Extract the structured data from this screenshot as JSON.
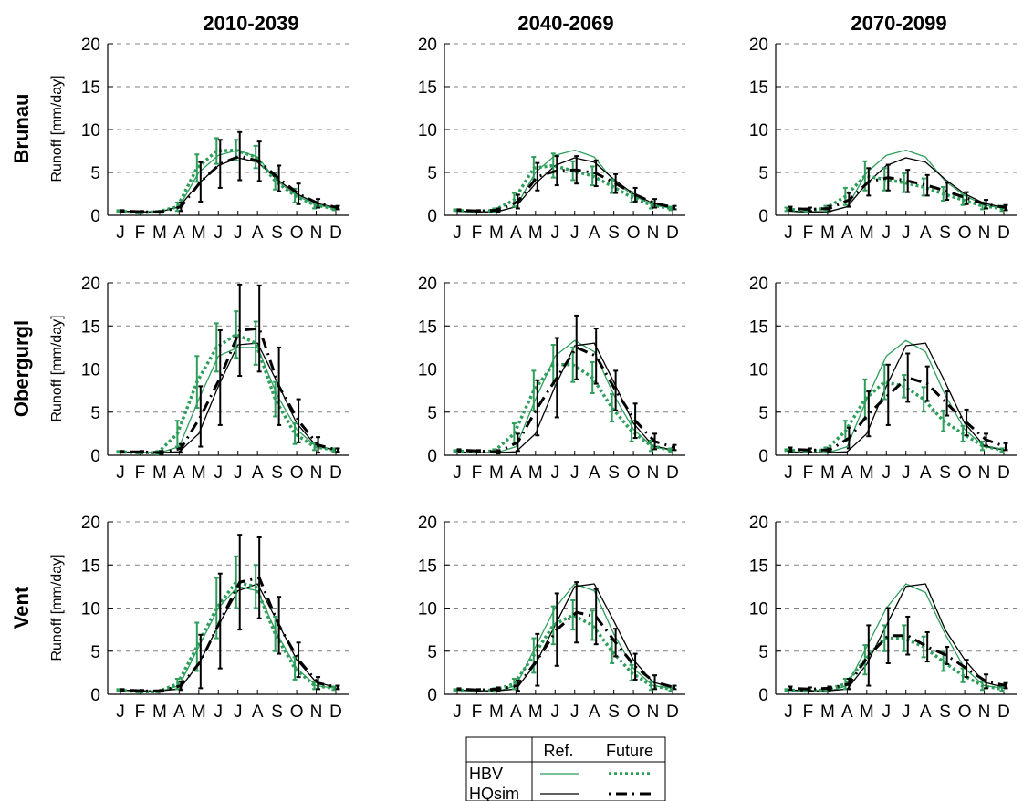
{
  "colors": {
    "hbv": "#2e9e5b",
    "hqsim": "#000000",
    "grid": "#808080"
  },
  "legend": {
    "ref_header": "Ref.",
    "future_header": "Future",
    "hbv_label": "HBV",
    "hqsim_label": "HQsim"
  },
  "chart_data": [
    {
      "type": "line",
      "row": "Brunau",
      "period": "2010-2039",
      "ylabel": "Runoff [mm/day]",
      "categories": [
        "J",
        "F",
        "M",
        "A",
        "M",
        "J",
        "J",
        "A",
        "S",
        "O",
        "N",
        "D"
      ],
      "ylim": [
        0,
        20
      ],
      "yticks": [
        0,
        5,
        10,
        15,
        20
      ],
      "grid": "dashed-horizontal",
      "series": [
        {
          "name": "HBV",
          "role": "ref",
          "values": [
            0.5,
            0.3,
            0.4,
            1.0,
            5.0,
            7.0,
            7.6,
            6.8,
            4.0,
            2.3,
            1.2,
            0.8
          ]
        },
        {
          "name": "HQsim",
          "role": "ref",
          "values": [
            0.5,
            0.4,
            0.4,
            1.0,
            3.7,
            5.8,
            6.7,
            6.2,
            4.2,
            2.5,
            1.4,
            0.9
          ]
        },
        {
          "name": "HBV",
          "role": "future",
          "values": [
            0.5,
            0.3,
            0.4,
            1.0,
            5.5,
            7.5,
            7.6,
            6.8,
            4.0,
            2.3,
            1.2,
            0.8
          ],
          "err": [
            0.1,
            0.1,
            0.1,
            0.5,
            1.6,
            1.5,
            1.2,
            1.3,
            1.0,
            0.8,
            0.4,
            0.2
          ]
        },
        {
          "name": "HQsim",
          "role": "future",
          "values": [
            0.5,
            0.4,
            0.4,
            1.0,
            3.9,
            6.0,
            6.9,
            6.3,
            4.3,
            2.5,
            1.4,
            0.9
          ],
          "err": [
            0.1,
            0.1,
            0.1,
            0.5,
            2.3,
            2.8,
            2.8,
            2.3,
            1.5,
            1.2,
            0.5,
            0.2
          ]
        }
      ]
    },
    {
      "type": "line",
      "row": "Brunau",
      "period": "2040-2069",
      "categories": [
        "J",
        "F",
        "M",
        "A",
        "M",
        "J",
        "J",
        "A",
        "S",
        "O",
        "N",
        "D"
      ],
      "ylim": [
        0,
        20
      ],
      "yticks": [
        0,
        5,
        10,
        15,
        20
      ],
      "grid": "dashed-horizontal",
      "series": [
        {
          "name": "HBV",
          "role": "ref",
          "values": [
            0.5,
            0.3,
            0.4,
            1.0,
            5.0,
            7.0,
            7.6,
            6.8,
            4.0,
            2.3,
            1.2,
            0.8
          ]
        },
        {
          "name": "HQsim",
          "role": "ref",
          "values": [
            0.5,
            0.4,
            0.4,
            1.0,
            3.7,
            5.8,
            6.7,
            6.2,
            4.2,
            2.5,
            1.4,
            0.9
          ]
        },
        {
          "name": "HBV",
          "role": "future",
          "values": [
            0.6,
            0.4,
            0.6,
            1.8,
            5.5,
            5.8,
            5.2,
            4.6,
            3.4,
            2.1,
            1.2,
            0.8
          ],
          "err": [
            0.1,
            0.1,
            0.2,
            0.8,
            1.3,
            1.4,
            1.1,
            1.1,
            0.8,
            0.6,
            0.4,
            0.2
          ]
        },
        {
          "name": "HQsim",
          "role": "future",
          "values": [
            0.6,
            0.5,
            0.6,
            1.6,
            4.5,
            5.2,
            5.3,
            4.9,
            3.7,
            2.4,
            1.4,
            0.9
          ],
          "err": [
            0.1,
            0.1,
            0.2,
            0.8,
            1.6,
            1.7,
            1.6,
            1.5,
            1.1,
            0.8,
            0.5,
            0.2
          ]
        }
      ]
    },
    {
      "type": "line",
      "row": "Brunau",
      "period": "2070-2099",
      "categories": [
        "J",
        "F",
        "M",
        "A",
        "M",
        "J",
        "J",
        "A",
        "S",
        "O",
        "N",
        "D"
      ],
      "ylim": [
        0,
        20
      ],
      "yticks": [
        0,
        5,
        10,
        15,
        20
      ],
      "grid": "dashed-horizontal",
      "series": [
        {
          "name": "HBV",
          "role": "ref",
          "values": [
            0.5,
            0.3,
            0.4,
            1.0,
            5.0,
            7.0,
            7.6,
            6.8,
            4.0,
            2.3,
            1.2,
            0.8
          ]
        },
        {
          "name": "HQsim",
          "role": "ref",
          "values": [
            0.5,
            0.4,
            0.4,
            1.0,
            3.7,
            5.8,
            6.7,
            6.2,
            4.2,
            2.5,
            1.4,
            0.9
          ]
        },
        {
          "name": "HBV",
          "role": "future",
          "values": [
            0.7,
            0.6,
            0.8,
            2.2,
            4.6,
            4.2,
            3.8,
            3.3,
            2.5,
            1.8,
            1.1,
            0.8
          ],
          "err": [
            0.2,
            0.2,
            0.3,
            1.0,
            1.7,
            1.3,
            1.1,
            1.0,
            0.8,
            0.6,
            0.4,
            0.3
          ]
        },
        {
          "name": "HQsim",
          "role": "future",
          "values": [
            0.8,
            0.7,
            0.8,
            1.8,
            3.9,
            4.4,
            4.0,
            3.5,
            2.8,
            2.0,
            1.3,
            0.9
          ],
          "err": [
            0.2,
            0.2,
            0.3,
            0.8,
            1.6,
            1.5,
            1.3,
            1.2,
            1.0,
            0.7,
            0.5,
            0.3
          ]
        }
      ]
    },
    {
      "type": "line",
      "row": "Obergurgl",
      "period": "2010-2039",
      "ylabel": "Runoff [mm/day]",
      "categories": [
        "J",
        "F",
        "M",
        "A",
        "M",
        "J",
        "J",
        "A",
        "S",
        "O",
        "N",
        "D"
      ],
      "ylim": [
        0,
        20
      ],
      "yticks": [
        0,
        5,
        10,
        15,
        20
      ],
      "grid": "dashed-horizontal",
      "series": [
        {
          "name": "HBV",
          "role": "ref",
          "values": [
            0.4,
            0.3,
            0.3,
            1.0,
            6.5,
            11.5,
            12.5,
            12.5,
            7.0,
            3.0,
            1.0,
            0.6
          ]
        },
        {
          "name": "HQsim",
          "role": "ref",
          "values": [
            0.4,
            0.3,
            0.3,
            0.4,
            2.5,
            8.0,
            12.8,
            13.0,
            8.5,
            3.7,
            1.1,
            0.6
          ]
        },
        {
          "name": "HBV",
          "role": "future",
          "values": [
            0.4,
            0.3,
            0.3,
            2.5,
            8.5,
            12.5,
            14.0,
            13.0,
            6.5,
            2.5,
            1.0,
            0.6
          ],
          "err": [
            0.1,
            0.1,
            0.2,
            1.5,
            3.0,
            2.8,
            2.7,
            2.5,
            2.0,
            1.2,
            0.4,
            0.2
          ]
        },
        {
          "name": "HQsim",
          "role": "future",
          "values": [
            0.4,
            0.4,
            0.3,
            0.8,
            4.5,
            9.0,
            14.5,
            14.7,
            8.0,
            4.0,
            1.2,
            0.6
          ],
          "err": [
            0.1,
            0.1,
            0.2,
            0.5,
            3.5,
            5.5,
            5.3,
            5.0,
            4.5,
            2.5,
            0.9,
            0.2
          ]
        }
      ]
    },
    {
      "type": "line",
      "row": "Obergurgl",
      "period": "2040-2069",
      "categories": [
        "J",
        "F",
        "M",
        "A",
        "M",
        "J",
        "J",
        "A",
        "S",
        "O",
        "N",
        "D"
      ],
      "ylim": [
        0,
        20
      ],
      "yticks": [
        0,
        5,
        10,
        15,
        20
      ],
      "grid": "dashed-horizontal",
      "series": [
        {
          "name": "HBV",
          "role": "ref",
          "values": [
            0.4,
            0.3,
            0.3,
            1.0,
            6.5,
            11.5,
            13.3,
            12.0,
            7.0,
            3.0,
            1.0,
            0.6
          ]
        },
        {
          "name": "HQsim",
          "role": "ref",
          "values": [
            0.4,
            0.3,
            0.3,
            0.4,
            2.5,
            8.0,
            12.7,
            13.0,
            8.5,
            3.7,
            1.1,
            0.6
          ]
        },
        {
          "name": "HBV",
          "role": "future",
          "values": [
            0.5,
            0.4,
            0.5,
            2.5,
            7.5,
            10.5,
            10.5,
            9.0,
            5.5,
            2.8,
            1.1,
            0.6
          ],
          "err": [
            0.1,
            0.1,
            0.2,
            1.2,
            2.3,
            2.3,
            2.0,
            1.8,
            1.6,
            1.2,
            0.6,
            0.2
          ]
        },
        {
          "name": "HQsim",
          "role": "future",
          "values": [
            0.6,
            0.5,
            0.4,
            1.5,
            5.5,
            9.0,
            12.5,
            11.5,
            7.5,
            4.0,
            1.6,
            0.9
          ],
          "err": [
            0.1,
            0.1,
            0.2,
            1.0,
            3.2,
            4.6,
            3.7,
            3.2,
            2.3,
            2.0,
            0.9,
            0.3
          ]
        }
      ]
    },
    {
      "type": "line",
      "row": "Obergurgl",
      "period": "2070-2099",
      "categories": [
        "J",
        "F",
        "M",
        "A",
        "M",
        "J",
        "J",
        "A",
        "S",
        "O",
        "N",
        "D"
      ],
      "ylim": [
        0,
        20
      ],
      "yticks": [
        0,
        5,
        10,
        15,
        20
      ],
      "grid": "dashed-horizontal",
      "series": [
        {
          "name": "HBV",
          "role": "ref",
          "values": [
            0.4,
            0.3,
            0.3,
            1.0,
            6.5,
            11.5,
            13.3,
            12.0,
            7.0,
            3.0,
            1.0,
            0.6
          ]
        },
        {
          "name": "HQsim",
          "role": "ref",
          "values": [
            0.4,
            0.3,
            0.3,
            0.4,
            2.5,
            8.0,
            12.7,
            13.0,
            8.5,
            3.7,
            1.1,
            0.6
          ]
        },
        {
          "name": "HBV",
          "role": "future",
          "values": [
            0.6,
            0.5,
            0.6,
            2.8,
            6.5,
            8.5,
            8.0,
            6.5,
            4.0,
            2.5,
            1.1,
            0.6
          ],
          "err": [
            0.1,
            0.1,
            0.3,
            1.2,
            2.3,
            2.0,
            1.3,
            1.4,
            1.2,
            0.9,
            0.5,
            0.2
          ]
        },
        {
          "name": "HQsim",
          "role": "future",
          "values": [
            0.7,
            0.6,
            0.6,
            2.0,
            4.8,
            7.0,
            9.0,
            8.3,
            6.0,
            3.8,
            1.8,
            1.0
          ],
          "err": [
            0.2,
            0.2,
            0.2,
            1.2,
            2.6,
            3.5,
            2.8,
            2.0,
            1.4,
            1.5,
            0.7,
            0.4
          ]
        }
      ]
    },
    {
      "type": "line",
      "row": "Vent",
      "period": "2010-2039",
      "ylabel": "Runoff [mm/day]",
      "categories": [
        "J",
        "F",
        "M",
        "A",
        "M",
        "J",
        "J",
        "A",
        "S",
        "O",
        "N",
        "D"
      ],
      "ylim": [
        0,
        20
      ],
      "yticks": [
        0,
        5,
        10,
        15,
        20
      ],
      "grid": "dashed-horizontal",
      "series": [
        {
          "name": "HBV",
          "role": "ref",
          "values": [
            0.5,
            0.3,
            0.3,
            1.0,
            5.5,
            10.0,
            12.5,
            12.0,
            7.0,
            3.0,
            1.0,
            0.7
          ]
        },
        {
          "name": "HQsim",
          "role": "ref",
          "values": [
            0.5,
            0.4,
            0.4,
            0.6,
            3.5,
            8.0,
            12.0,
            12.8,
            8.5,
            4.0,
            1.4,
            0.8
          ]
        },
        {
          "name": "HBV",
          "role": "future",
          "values": [
            0.5,
            0.3,
            0.3,
            1.2,
            5.5,
            10.0,
            13.0,
            12.5,
            7.0,
            3.0,
            1.0,
            0.7
          ],
          "err": [
            0.1,
            0.1,
            0.1,
            0.6,
            2.8,
            3.5,
            3.0,
            2.5,
            2.0,
            1.3,
            0.4,
            0.2
          ]
        },
        {
          "name": "HQsim",
          "role": "future",
          "values": [
            0.5,
            0.4,
            0.4,
            1.0,
            3.8,
            8.5,
            13.0,
            13.5,
            8.0,
            4.0,
            1.3,
            0.8
          ],
          "err": [
            0.1,
            0.1,
            0.1,
            0.5,
            3.1,
            5.5,
            5.5,
            4.7,
            3.3,
            2.0,
            0.7,
            0.2
          ]
        }
      ]
    },
    {
      "type": "line",
      "row": "Vent",
      "period": "2040-2069",
      "categories": [
        "J",
        "F",
        "M",
        "A",
        "M",
        "J",
        "J",
        "A",
        "S",
        "O",
        "N",
        "D"
      ],
      "ylim": [
        0,
        20
      ],
      "yticks": [
        0,
        5,
        10,
        15,
        20
      ],
      "grid": "dashed-horizontal",
      "series": [
        {
          "name": "HBV",
          "role": "ref",
          "values": [
            0.5,
            0.3,
            0.3,
            1.0,
            5.5,
            10.0,
            12.8,
            12.0,
            7.0,
            3.0,
            1.0,
            0.7
          ]
        },
        {
          "name": "HQsim",
          "role": "ref",
          "values": [
            0.5,
            0.4,
            0.4,
            0.6,
            3.5,
            8.0,
            12.5,
            12.8,
            8.5,
            4.0,
            1.4,
            0.8
          ]
        },
        {
          "name": "HBV",
          "role": "future",
          "values": [
            0.5,
            0.4,
            0.5,
            1.2,
            4.5,
            8.0,
            9.2,
            8.0,
            5.0,
            2.5,
            1.0,
            0.6
          ],
          "err": [
            0.1,
            0.1,
            0.2,
            0.6,
            2.0,
            2.2,
            1.7,
            1.7,
            1.4,
            0.9,
            0.5,
            0.2
          ]
        },
        {
          "name": "HQsim",
          "role": "future",
          "values": [
            0.6,
            0.5,
            0.6,
            1.0,
            4.0,
            7.5,
            9.5,
            9.0,
            6.0,
            3.2,
            1.4,
            0.8
          ],
          "err": [
            0.1,
            0.1,
            0.2,
            0.6,
            3.0,
            4.2,
            3.5,
            3.2,
            1.6,
            1.5,
            0.8,
            0.2
          ]
        }
      ]
    },
    {
      "type": "line",
      "row": "Vent",
      "period": "2070-2099",
      "categories": [
        "J",
        "F",
        "M",
        "A",
        "M",
        "J",
        "J",
        "A",
        "S",
        "O",
        "N",
        "D"
      ],
      "ylim": [
        0,
        20
      ],
      "yticks": [
        0,
        5,
        10,
        15,
        20
      ],
      "grid": "dashed-horizontal",
      "series": [
        {
          "name": "HBV",
          "role": "ref",
          "values": [
            0.5,
            0.3,
            0.3,
            1.0,
            5.5,
            10.0,
            12.8,
            11.8,
            7.0,
            3.0,
            1.0,
            0.7
          ]
        },
        {
          "name": "HQsim",
          "role": "ref",
          "values": [
            0.5,
            0.4,
            0.4,
            0.6,
            3.5,
            8.0,
            12.5,
            12.8,
            7.5,
            4.0,
            1.4,
            0.8
          ]
        },
        {
          "name": "HBV",
          "role": "future",
          "values": [
            0.5,
            0.4,
            0.5,
            1.2,
            4.0,
            6.5,
            6.5,
            5.5,
            3.8,
            2.2,
            1.0,
            0.6
          ],
          "err": [
            0.1,
            0.1,
            0.2,
            0.6,
            1.7,
            1.5,
            1.5,
            1.2,
            1.1,
            0.8,
            0.5,
            0.2
          ]
        },
        {
          "name": "HQsim",
          "role": "future",
          "values": [
            0.7,
            0.6,
            0.7,
            1.2,
            4.5,
            6.8,
            6.8,
            5.5,
            4.5,
            3.0,
            1.5,
            1.0
          ],
          "err": [
            0.2,
            0.2,
            0.2,
            0.6,
            3.5,
            3.2,
            2.2,
            1.7,
            1.0,
            1.0,
            0.8,
            0.3
          ]
        }
      ]
    }
  ]
}
